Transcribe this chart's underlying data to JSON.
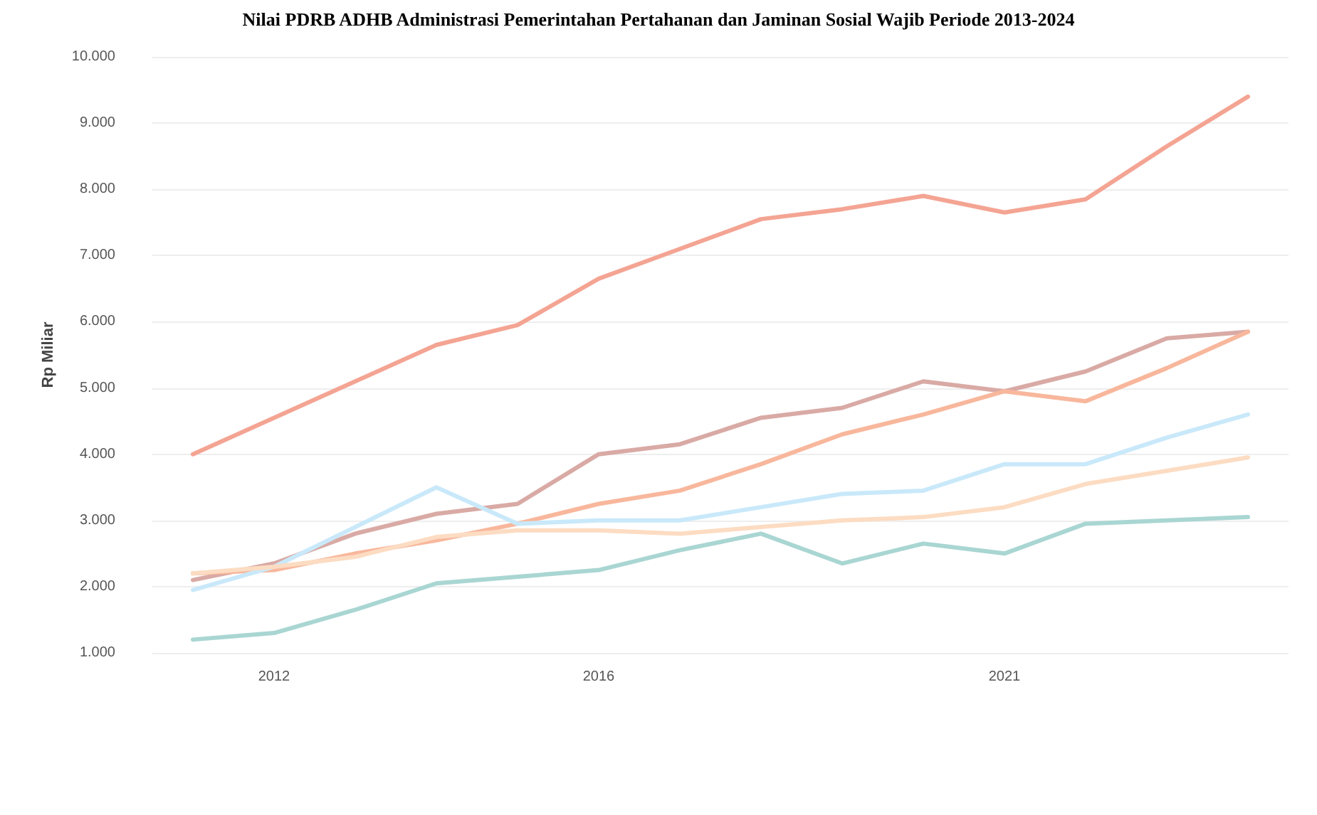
{
  "chart_data": {
    "type": "line",
    "title": "Nilai PDRB ADHB Administrasi Pemerintahan Pertahanan dan Jaminan Sosial Wajib Periode 2013-2024",
    "ylabel": "Rp Miliar",
    "categories": [
      null,
      "2012",
      null,
      null,
      null,
      "2016",
      null,
      null,
      null,
      null,
      "2021",
      null,
      null,
      null
    ],
    "series": [
      {
        "color": "#f4a493",
        "values": [
          4000,
          4550,
          5100,
          5650,
          5950,
          6650,
          7100,
          7550,
          7700,
          7900,
          7650,
          7850,
          8650,
          9400
        ]
      },
      {
        "color": "#d9aaa5",
        "values": [
          2100,
          2350,
          2800,
          3100,
          3250,
          4000,
          4150,
          4550,
          4700,
          5100,
          4950,
          5250,
          5750,
          5850
        ]
      },
      {
        "color": "#f8b79c",
        "values": [
          2200,
          2250,
          2500,
          2700,
          2950,
          3250,
          3450,
          3850,
          4300,
          4600,
          4950,
          4800,
          5300,
          5850
        ]
      },
      {
        "color": "#c9e9fa",
        "values": [
          1950,
          2300,
          2900,
          3500,
          2950,
          3000,
          3000,
          3200,
          3400,
          3450,
          3850,
          3850,
          4250,
          4600
        ]
      },
      {
        "color": "#fcdcc2",
        "values": [
          2200,
          2300,
          2450,
          2750,
          2850,
          2850,
          2800,
          2900,
          3000,
          3050,
          3200,
          3550,
          3750,
          3950
        ]
      },
      {
        "color": "#a9d6d2",
        "values": [
          1200,
          1300,
          1650,
          2050,
          2150,
          2250,
          2550,
          2800,
          2350,
          2650,
          2500,
          2950,
          3000,
          3050
        ]
      }
    ],
    "ylim": [
      1000,
      10000
    ],
    "yticks": [
      {
        "value": 1000,
        "label": "1.000"
      },
      {
        "value": 2000,
        "label": "2.000"
      },
      {
        "value": 3000,
        "label": "3.000"
      },
      {
        "value": 4000,
        "label": "4.000"
      },
      {
        "value": 5000,
        "label": "5.000"
      },
      {
        "value": 6000,
        "label": "6.000"
      },
      {
        "value": 7000,
        "label": "7.000"
      },
      {
        "value": 8000,
        "label": "8.000"
      },
      {
        "value": 9000,
        "label": "9.000"
      },
      {
        "value": 10000,
        "label": "10.000"
      }
    ],
    "grid": "y",
    "marker": "none",
    "line_style": "solid"
  }
}
